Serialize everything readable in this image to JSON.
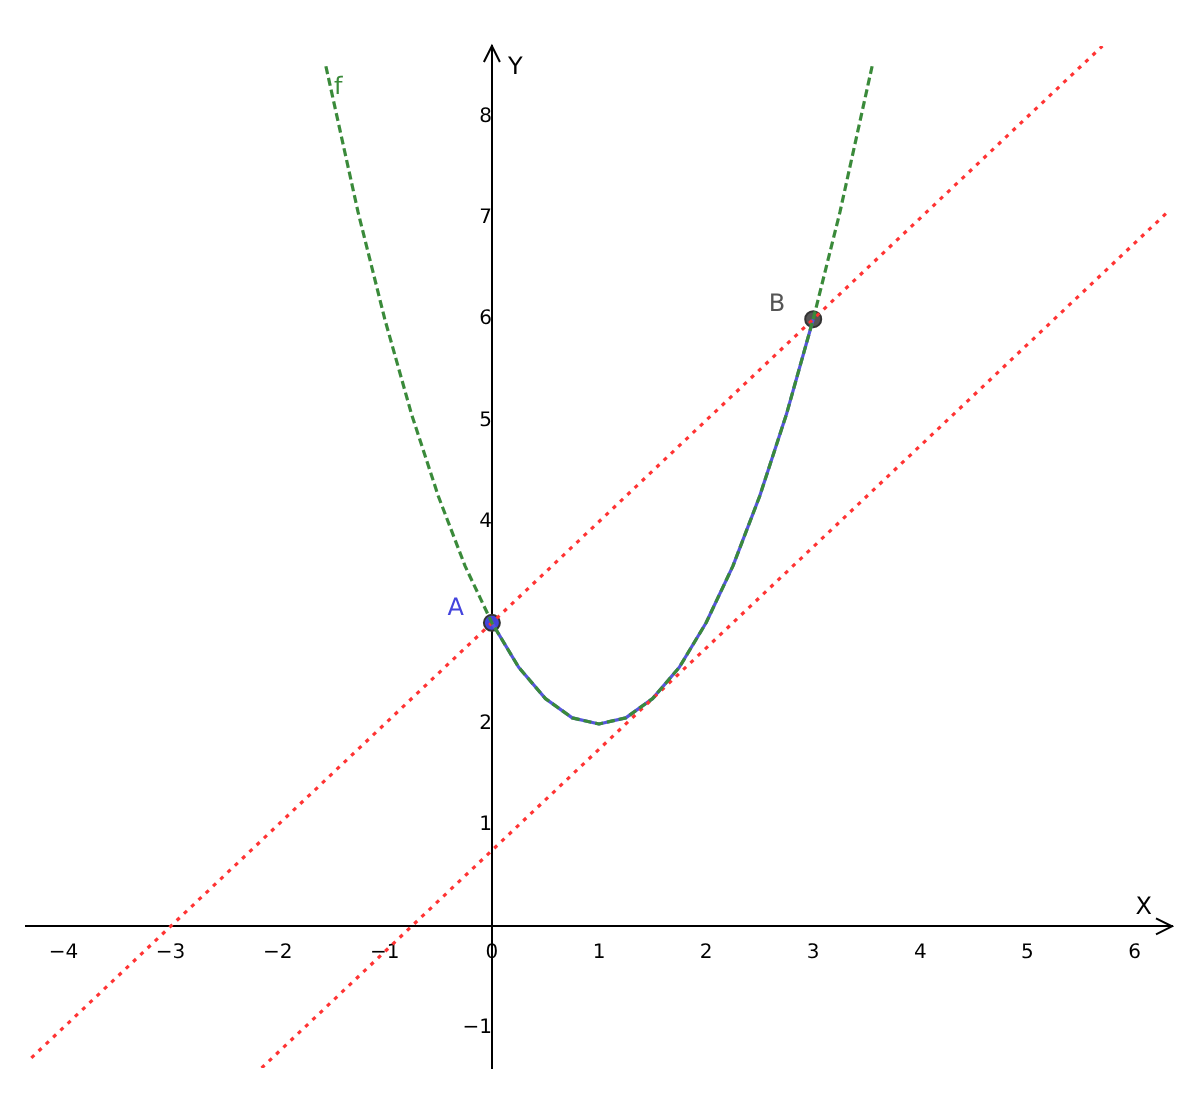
{
  "chart_data": {
    "type": "line",
    "xlabel": "X",
    "ylabel": "Y",
    "xlim": [
      -4.35,
      6.35
    ],
    "ylim": [
      -1.4,
      8.7
    ],
    "xticks": [
      -4,
      -3,
      -2,
      -1,
      0,
      1,
      2,
      3,
      4,
      5,
      6
    ],
    "yticks": [
      -1,
      1,
      2,
      4,
      5,
      6,
      7,
      8
    ],
    "series": [
      {
        "name": "f",
        "type": "line",
        "color": "#3a8a3a",
        "line_style": "dashed",
        "marker": "none",
        "x": [
          -1.55,
          -1.25,
          -1,
          -0.75,
          -0.5,
          -0.25,
          0,
          0.25,
          0.5,
          0.75,
          1,
          1.25,
          1.5,
          1.75,
          2,
          2.25,
          2.5,
          2.75,
          3,
          3.25,
          3.55
        ],
        "values": [
          8.5,
          7.06,
          6,
          5.06,
          4.25,
          3.56,
          3,
          2.56,
          2.25,
          2.06,
          2,
          2.06,
          2.25,
          2.56,
          3,
          3.56,
          4.25,
          5.06,
          6,
          7.06,
          8.5
        ]
      },
      {
        "type": "line",
        "color": "#ff3333",
        "line_style": "dotted",
        "marker": "none",
        "x": [
          -4.3,
          5.7
        ],
        "values": [
          -1.3,
          8.7
        ]
      },
      {
        "type": "line",
        "color": "#ff3333",
        "line_style": "dotted",
        "marker": "none",
        "x": [
          -2.15,
          6.3
        ],
        "values": [
          -1.4,
          7.05
        ]
      },
      {
        "type": "line",
        "color": "#5555dd",
        "line_style": "solid",
        "marker": "none",
        "x": [
          0,
          0.25,
          0.5,
          0.75,
          1,
          1.25,
          1.5,
          1.75,
          2,
          2.25,
          2.5,
          2.75,
          3
        ],
        "values": [
          3,
          2.56,
          2.25,
          2.06,
          2,
          2.06,
          2.25,
          2.56,
          3,
          3.56,
          4.25,
          5.06,
          6
        ]
      },
      {
        "name": "A",
        "type": "scatter",
        "color": "#4444dd",
        "marker": "circle",
        "x": [
          0
        ],
        "values": [
          3
        ]
      },
      {
        "name": "B",
        "type": "scatter",
        "color": "#555555",
        "marker": "circle",
        "x": [
          3
        ],
        "values": [
          6
        ]
      }
    ]
  }
}
